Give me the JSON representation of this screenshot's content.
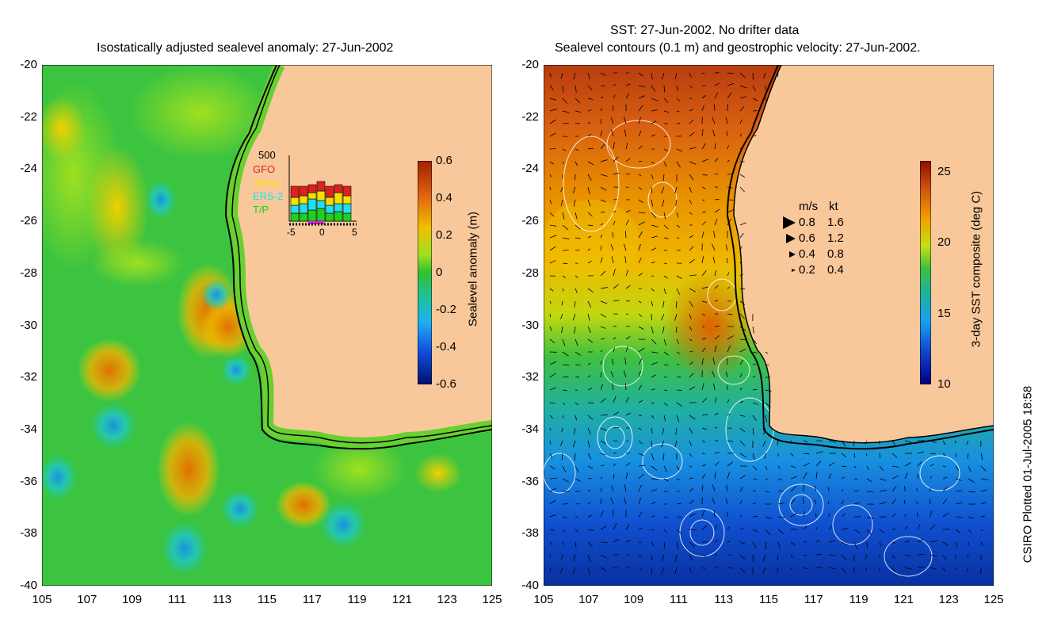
{
  "left_panel": {
    "title": "Isostatically adjusted sealevel anomaly: 27-Jun-2002",
    "y_ticks": [
      "-20",
      "-22",
      "-24",
      "-26",
      "-28",
      "-30",
      "-32",
      "-34",
      "-36",
      "-38",
      "-40"
    ],
    "x_ticks": [
      "105",
      "107",
      "109",
      "111",
      "113",
      "115",
      "117",
      "119",
      "121",
      "123",
      "125"
    ],
    "colorbar": {
      "label": "Sealevel anomaly (m)",
      "ticks": [
        "0.6",
        "0.4",
        "0.2",
        "0",
        "-0.2",
        "-0.4",
        "-0.6"
      ]
    },
    "inset": {
      "y_top_label": "500",
      "satellites": [
        {
          "name": "GFO",
          "color": "#e02020"
        },
        {
          "name": "Jason",
          "color": "#f5e000"
        },
        {
          "name": "ERS-2",
          "color": "#20e0f0"
        },
        {
          "name": "T/P",
          "color": "#20d020"
        }
      ],
      "x_ticks": [
        "-5",
        "0",
        "5"
      ]
    }
  },
  "right_panel": {
    "title_line1": "SST: 27-Jun-2002. No drifter data",
    "title_line2": "Sealevel contours (0.1 m) and geostrophic velocity: 27-Jun-2002.",
    "y_ticks": [
      "-20",
      "-22",
      "-24",
      "-26",
      "-28",
      "-30",
      "-32",
      "-34",
      "-36",
      "-38",
      "-40"
    ],
    "x_ticks": [
      "105",
      "107",
      "109",
      "111",
      "113",
      "115",
      "117",
      "119",
      "121",
      "123",
      "125"
    ],
    "colorbar": {
      "label": "3-day SST composite (deg C)",
      "ticks": [
        "25",
        "20",
        "15",
        "10"
      ]
    },
    "velocity_legend": {
      "header_ms": "m/s",
      "header_kt": "kt",
      "rows": [
        {
          "ms": "0.8",
          "kt": "1.6"
        },
        {
          "ms": "0.6",
          "kt": "1.2"
        },
        {
          "ms": "0.4",
          "kt": "0.8"
        },
        {
          "ms": "0.2",
          "kt": "0.4"
        }
      ]
    }
  },
  "credit": "CSIRO Plotted 01-Jul-2005 18:58",
  "colors": {
    "land": "#f9c89a",
    "sla_bg": "#40c840",
    "sst_warm": "#c85010",
    "sst_cold": "#1060d0"
  }
}
